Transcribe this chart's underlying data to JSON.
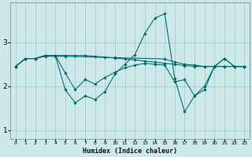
{
  "xlabel": "Humidex (Indice chaleur)",
  "bg_color": "#cce8e8",
  "grid_color": "#aacccc",
  "line_color": "#006868",
  "xlim": [
    -0.5,
    23.5
  ],
  "ylim": [
    0.8,
    3.9
  ],
  "yticks": [
    1,
    2,
    3
  ],
  "xticks": [
    0,
    1,
    2,
    3,
    4,
    5,
    6,
    7,
    8,
    9,
    10,
    11,
    12,
    13,
    14,
    15,
    16,
    17,
    18,
    19,
    20,
    21,
    22,
    23
  ],
  "series": [
    {
      "x": [
        0,
        1,
        2,
        3,
        4,
        5,
        10,
        15,
        16,
        17,
        18,
        19,
        20,
        21,
        22,
        23
      ],
      "y": [
        2.45,
        2.63,
        2.63,
        2.68,
        2.68,
        2.68,
        2.65,
        2.62,
        2.55,
        2.5,
        2.48,
        2.45,
        2.45,
        2.45,
        2.45,
        2.45
      ]
    },
    {
      "x": [
        0,
        1,
        2,
        3,
        4,
        5,
        6,
        7,
        8,
        9,
        10,
        11,
        12,
        13,
        14,
        15,
        16,
        17,
        18,
        19,
        20,
        21,
        22,
        23
      ],
      "y": [
        2.45,
        2.63,
        2.63,
        2.7,
        2.7,
        2.7,
        2.7,
        2.7,
        2.68,
        2.66,
        2.64,
        2.62,
        2.6,
        2.57,
        2.55,
        2.52,
        2.5,
        2.47,
        2.45,
        2.45,
        2.45,
        2.45,
        2.45,
        2.45
      ]
    },
    {
      "x": [
        0,
        1,
        2,
        3,
        4,
        5,
        6,
        7,
        8,
        9,
        10,
        11,
        12,
        13,
        14,
        15,
        16,
        17,
        18,
        19,
        20,
        21,
        22,
        23
      ],
      "y": [
        2.45,
        2.63,
        2.63,
        2.7,
        2.7,
        1.92,
        1.62,
        1.78,
        1.7,
        1.88,
        2.28,
        2.5,
        2.72,
        3.2,
        3.55,
        3.65,
        2.18,
        1.42,
        1.78,
        2.0,
        2.45,
        2.63,
        2.45,
        2.45
      ]
    },
    {
      "x": [
        0,
        1,
        2,
        3,
        4,
        5,
        6,
        7,
        8,
        9,
        10,
        11,
        12,
        13,
        14,
        15,
        16,
        17,
        18,
        19,
        20,
        21,
        22,
        23
      ],
      "y": [
        2.45,
        2.63,
        2.63,
        2.7,
        2.7,
        2.3,
        1.92,
        2.15,
        2.05,
        2.2,
        2.32,
        2.42,
        2.48,
        2.52,
        2.5,
        2.48,
        2.1,
        2.15,
        1.78,
        1.92,
        2.45,
        2.63,
        2.45,
        2.45
      ]
    }
  ]
}
